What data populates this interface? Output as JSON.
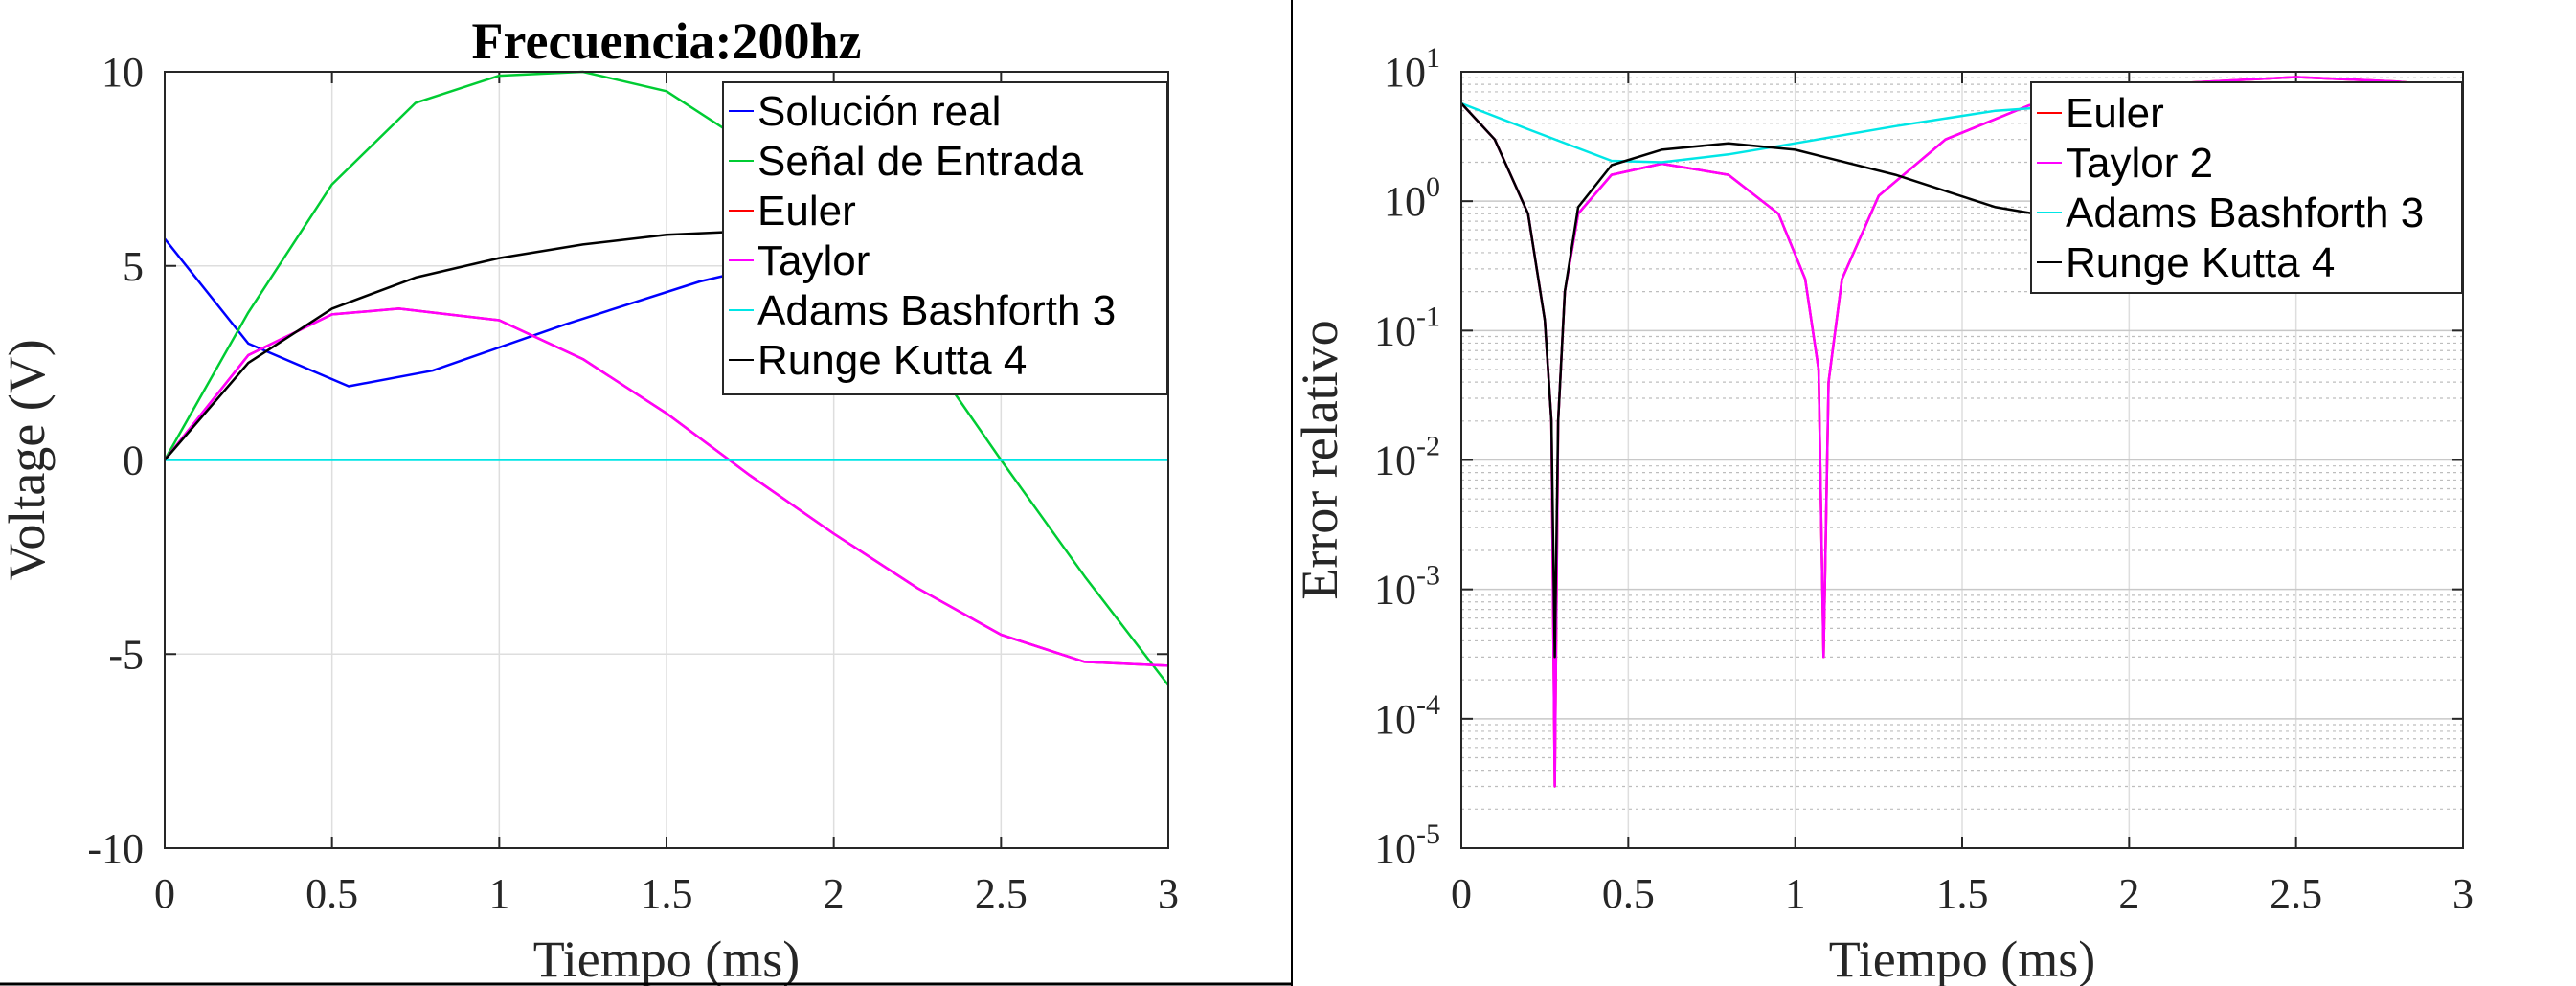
{
  "chart_data": [
    {
      "type": "line",
      "title": "Frecuencia:200hz",
      "xlabel": "Tiempo (ms)",
      "ylabel": "Voltage (V)",
      "xlim": [
        0,
        3
      ],
      "ylim": [
        -10,
        10
      ],
      "grid": true,
      "legend_position": "top-right",
      "x_ticks": [
        0,
        0.5,
        1,
        1.5,
        2,
        2.5,
        3
      ],
      "x_tick_labels": [
        "0",
        "0.5",
        "1",
        "1.5",
        "2",
        "2.5",
        "3"
      ],
      "y_ticks": [
        -10,
        -5,
        0,
        5,
        10
      ],
      "y_tick_labels": [
        "-10",
        "-5",
        "0",
        "5",
        "10"
      ],
      "series": [
        {
          "name": "Solución real",
          "color": "#0000ff",
          "x": [
            0,
            0.25,
            0.55,
            0.8,
            1.2,
            1.6,
            2.0,
            2.4,
            2.7,
            3.0
          ],
          "y": [
            5.7,
            3.0,
            1.9,
            2.3,
            3.5,
            4.6,
            5.4,
            5.6,
            5.2,
            2.1
          ]
        },
        {
          "name": "Señal de Entrada",
          "color": "#00cc33",
          "x": [
            0,
            0.25,
            0.5,
            0.75,
            1.0,
            1.25,
            1.5,
            1.75,
            2.0,
            2.25,
            2.5,
            2.75,
            3.0
          ],
          "y": [
            0,
            3.8,
            7.1,
            9.2,
            9.9,
            10.0,
            9.5,
            8.1,
            5.9,
            3.1,
            0,
            -3.0,
            -5.8
          ]
        },
        {
          "name": "Euler",
          "color": "#ff0000",
          "x": [
            0,
            0.25,
            0.5,
            0.7,
            1.0,
            1.25,
            1.5,
            1.75,
            2.0,
            2.25,
            2.5,
            2.75,
            3.0
          ],
          "y": [
            0,
            2.7,
            3.75,
            3.9,
            3.6,
            2.6,
            1.2,
            -0.4,
            -1.9,
            -3.3,
            -4.5,
            -5.2,
            -5.3
          ]
        },
        {
          "name": "Taylor",
          "color": "#ff00ff",
          "x": [
            0,
            0.25,
            0.5,
            0.7,
            1.0,
            1.25,
            1.5,
            1.75,
            2.0,
            2.25,
            2.5,
            2.75,
            3.0
          ],
          "y": [
            0,
            2.7,
            3.75,
            3.9,
            3.6,
            2.6,
            1.2,
            -0.4,
            -1.9,
            -3.3,
            -4.5,
            -5.2,
            -5.3
          ]
        },
        {
          "name": "Adams Bashforth 3",
          "color": "#00e6e6",
          "x": [
            0,
            3.0
          ],
          "y": [
            0,
            0
          ]
        },
        {
          "name": "Runge Kutta 4",
          "color": "#000000",
          "x": [
            0,
            0.25,
            0.5,
            0.75,
            1.0,
            1.25,
            1.5,
            1.75,
            2.0,
            2.5,
            3.0
          ],
          "y": [
            0,
            2.5,
            3.9,
            4.7,
            5.2,
            5.55,
            5.8,
            5.9,
            6.0,
            6.0,
            6.0
          ]
        }
      ]
    },
    {
      "type": "line",
      "title": "",
      "xlabel": "Tiempo (ms)",
      "ylabel": "Error relativo",
      "xlim": [
        0,
        3
      ],
      "ylim": [
        1e-05,
        10
      ],
      "y_scale": "log",
      "grid": true,
      "minor_grid": true,
      "legend_position": "top-right",
      "x_ticks": [
        0,
        0.5,
        1,
        1.5,
        2,
        2.5,
        3
      ],
      "x_tick_labels": [
        "0",
        "0.5",
        "1",
        "1.5",
        "2",
        "2.5",
        "3"
      ],
      "y_tick_exponents": [
        1,
        0,
        -1,
        -2,
        -3,
        -4,
        -5
      ],
      "y_tick_base": "10",
      "series": [
        {
          "name": "Euler",
          "color": "#ff0000",
          "x": [
            0,
            0.1,
            0.2,
            0.25,
            0.27,
            0.28,
            0.29,
            0.31,
            0.35,
            0.45,
            0.6,
            0.8,
            0.95,
            1.03,
            1.07,
            1.085,
            1.1,
            1.14,
            1.25,
            1.45,
            1.7,
            2.0,
            2.5,
            2.8,
            3.0
          ],
          "y": [
            5.7,
            3.0,
            0.8,
            0.12,
            0.02,
            3e-05,
            0.02,
            0.2,
            0.8,
            1.6,
            1.95,
            1.6,
            0.8,
            0.25,
            0.05,
            0.0003,
            0.04,
            0.25,
            1.1,
            3.0,
            5.5,
            7.8,
            9.1,
            8.4,
            7.6
          ]
        },
        {
          "name": "Taylor 2",
          "color": "#ff00ff",
          "x": [
            0,
            0.1,
            0.2,
            0.25,
            0.27,
            0.28,
            0.29,
            0.31,
            0.35,
            0.45,
            0.6,
            0.8,
            0.95,
            1.03,
            1.07,
            1.085,
            1.1,
            1.14,
            1.25,
            1.45,
            1.7,
            2.0,
            2.5,
            2.8,
            3.0
          ],
          "y": [
            5.7,
            3.0,
            0.8,
            0.12,
            0.02,
            3e-05,
            0.02,
            0.2,
            0.8,
            1.6,
            1.95,
            1.6,
            0.8,
            0.25,
            0.05,
            0.0003,
            0.04,
            0.25,
            1.1,
            3.0,
            5.5,
            7.8,
            9.1,
            8.4,
            7.6
          ]
        },
        {
          "name": "Adams Bashforth 3",
          "color": "#00e6e6",
          "x": [
            0,
            0.2,
            0.45,
            0.6,
            0.8,
            1.0,
            1.3,
            1.6,
            2.0,
            2.5,
            2.8,
            3.0
          ],
          "y": [
            5.7,
            3.6,
            2.05,
            2.0,
            2.3,
            2.8,
            3.8,
            5.0,
            5.9,
            5.3,
            3.8,
            2.1
          ]
        },
        {
          "name": "Runge Kutta 4",
          "color": "#000000",
          "x": [
            0,
            0.1,
            0.2,
            0.25,
            0.27,
            0.28,
            0.29,
            0.31,
            0.35,
            0.45,
            0.6,
            0.8,
            1.0,
            1.3,
            1.6,
            2.0,
            2.5,
            3.0
          ],
          "y": [
            5.7,
            3.0,
            0.8,
            0.12,
            0.02,
            0.0003,
            0.02,
            0.2,
            0.9,
            1.9,
            2.5,
            2.8,
            2.5,
            1.6,
            0.9,
            0.6,
            1.4,
            3.8
          ]
        }
      ]
    }
  ]
}
